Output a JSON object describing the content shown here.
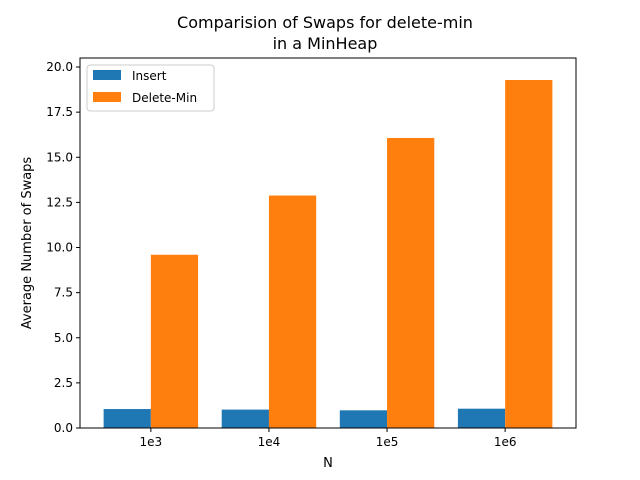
{
  "chart_data": {
    "type": "bar",
    "title_lines": [
      "Comparision of Swaps for delete-min",
      "in a MinHeap"
    ],
    "xlabel": "N",
    "ylabel": "Average Number of Swaps",
    "categories": [
      "1e3",
      "1e4",
      "1e5",
      "1e6"
    ],
    "series": [
      {
        "name": "Insert",
        "color": "#1f77b4",
        "values": [
          1.05,
          1.02,
          0.98,
          1.07
        ]
      },
      {
        "name": "Delete-Min",
        "color": "#ff7f0e",
        "values": [
          9.6,
          12.88,
          16.07,
          19.28
        ]
      }
    ],
    "ylim": [
      0,
      20.5
    ],
    "yticks": [
      "0.0",
      "2.5",
      "5.0",
      "7.5",
      "10.0",
      "12.5",
      "15.0",
      "17.5",
      "20.0"
    ],
    "grid": false,
    "legend_position": "top-left"
  }
}
